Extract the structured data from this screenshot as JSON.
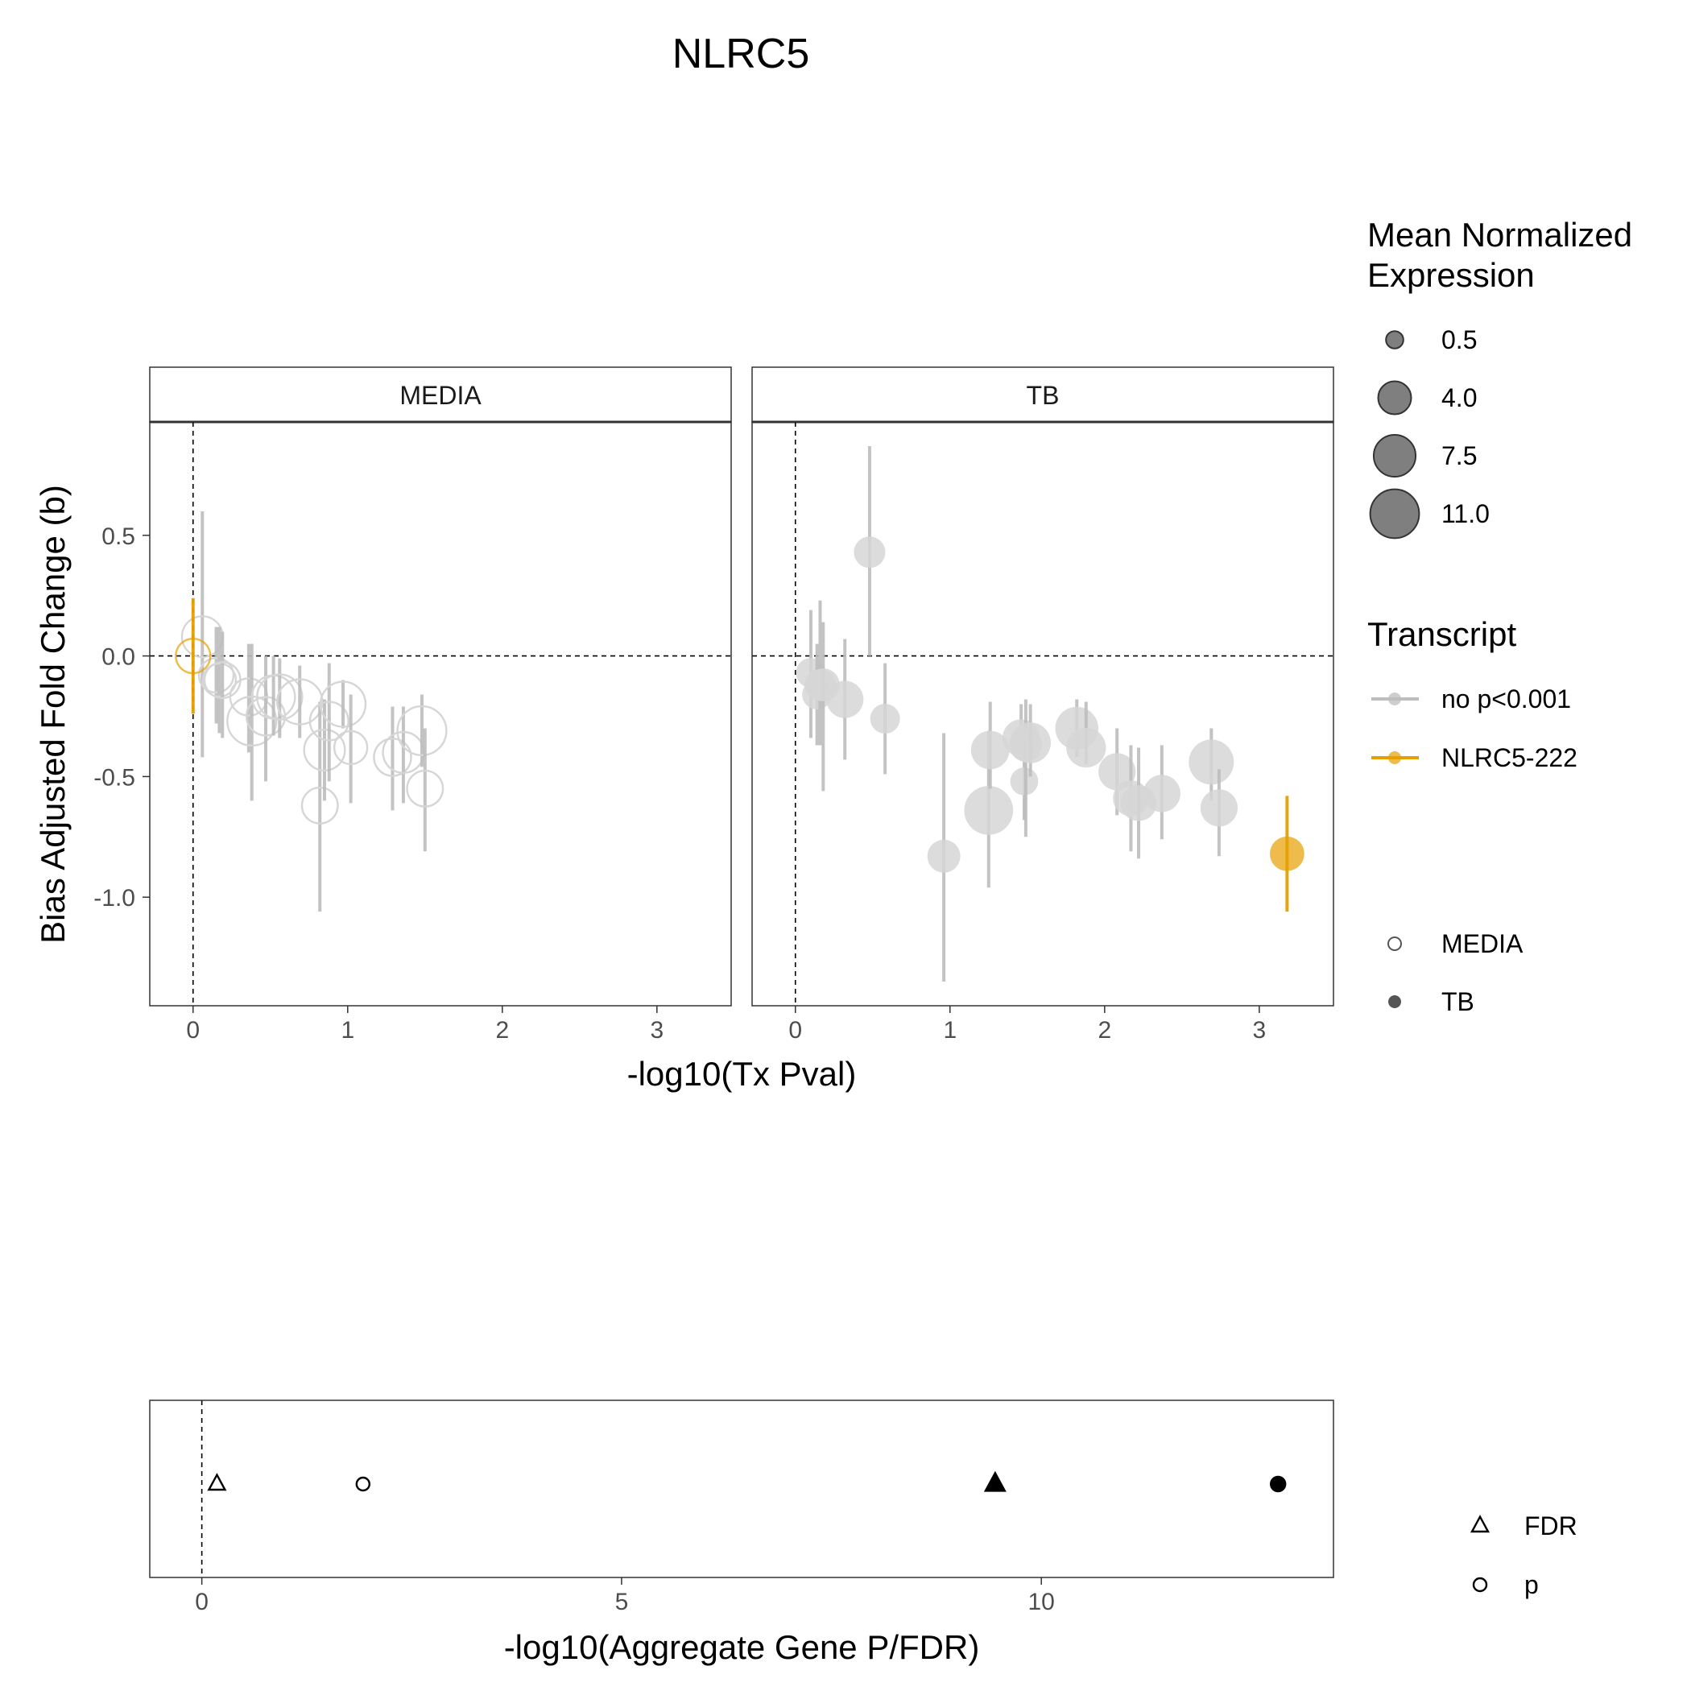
{
  "title": "NLRC5",
  "colors": {
    "grey": "#bdbdbd",
    "orange": "#e69f00",
    "grey_point": "#d6d6d6",
    "black": "#000000"
  },
  "legends": {
    "size": {
      "title_line1": "Mean Normalized",
      "title_line2": "Expression",
      "items": [
        {
          "label": "0.5",
          "value": 0.5
        },
        {
          "label": "4.0",
          "value": 4.0
        },
        {
          "label": "7.5",
          "value": 7.5
        },
        {
          "label": "11.0",
          "value": 11.0
        }
      ]
    },
    "transcript": {
      "title": "Transcript",
      "items": [
        {
          "label": "no p<0.001",
          "color": "#bdbdbd"
        },
        {
          "label": "NLRC5-222",
          "color": "#e69f00"
        }
      ]
    },
    "condition": {
      "items": [
        {
          "label": "MEDIA",
          "shape": "open-circle"
        },
        {
          "label": "TB",
          "shape": "filled-circle"
        }
      ]
    },
    "stat": {
      "items": [
        {
          "label": "FDR",
          "shape": "open-triangle"
        },
        {
          "label": "p",
          "shape": "open-circle"
        }
      ]
    }
  },
  "chart_data": [
    {
      "type": "scatter",
      "title": "NLRC5",
      "xlabel": "-log10(Tx Pval)",
      "ylabel": "Bias Adjusted Fold Change (b)",
      "xlim": [
        -0.28,
        3.48
      ],
      "ylim": [
        -1.45,
        0.97
      ],
      "xticks": [
        0,
        1,
        2,
        3
      ],
      "xtick_labels": [
        "0",
        "1",
        "2",
        "3"
      ],
      "yticks": [
        -1.0,
        -0.5,
        0.0,
        0.5
      ],
      "ytick_labels": [
        "-1.0",
        "-0.5",
        "0.0",
        "0.5"
      ],
      "ref_lines": {
        "x": 0,
        "y": 0
      },
      "grid": false,
      "panels": [
        {
          "label": "MEDIA",
          "points": [
            {
              "x": 0.06,
              "y": 0.08,
              "lo": -0.42,
              "hi": 0.6,
              "size": 7.0,
              "transcript": "no p<0.001"
            },
            {
              "x": 0.15,
              "y": -0.08,
              "lo": -0.28,
              "hi": 0.12,
              "size": 4.5,
              "transcript": "no p<0.001"
            },
            {
              "x": 0.17,
              "y": -0.1,
              "lo": -0.32,
              "hi": 0.12,
              "size": 4.0,
              "transcript": "no p<0.001"
            },
            {
              "x": 0.19,
              "y": -0.1,
              "lo": -0.34,
              "hi": 0.1,
              "size": 5.0,
              "transcript": "no p<0.001"
            },
            {
              "x": 0.36,
              "y": -0.17,
              "lo": -0.4,
              "hi": 0.05,
              "size": 5.5,
              "transcript": "no p<0.001"
            },
            {
              "x": 0.38,
              "y": -0.27,
              "lo": -0.6,
              "hi": 0.05,
              "size": 11.0,
              "transcript": "no p<0.001"
            },
            {
              "x": 0.47,
              "y": -0.25,
              "lo": -0.52,
              "hi": 0.0,
              "size": 6.0,
              "transcript": "no p<0.001"
            },
            {
              "x": 0.52,
              "y": -0.17,
              "lo": -0.33,
              "hi": 0.0,
              "size": 8.0,
              "transcript": "no p<0.001"
            },
            {
              "x": 0.56,
              "y": -0.17,
              "lo": -0.34,
              "hi": -0.01,
              "size": 9.0,
              "transcript": "no p<0.001"
            },
            {
              "x": 0.69,
              "y": -0.19,
              "lo": -0.34,
              "hi": -0.04,
              "size": 9.0,
              "transcript": "no p<0.001"
            },
            {
              "x": 0.82,
              "y": -0.62,
              "lo": -1.06,
              "hi": -0.19,
              "size": 5.0,
              "transcript": "no p<0.001"
            },
            {
              "x": 0.85,
              "y": -0.39,
              "lo": -0.6,
              "hi": -0.18,
              "size": 7.0,
              "transcript": "no p<0.001"
            },
            {
              "x": 0.88,
              "y": -0.27,
              "lo": -0.52,
              "hi": -0.03,
              "size": 6.0,
              "transcript": "no p<0.001"
            },
            {
              "x": 0.97,
              "y": -0.2,
              "lo": -0.3,
              "hi": -0.1,
              "size": 9.0,
              "transcript": "no p<0.001"
            },
            {
              "x": 1.02,
              "y": -0.38,
              "lo": -0.61,
              "hi": -0.16,
              "size": 4.0,
              "transcript": "no p<0.001"
            },
            {
              "x": 1.29,
              "y": -0.42,
              "lo": -0.64,
              "hi": -0.21,
              "size": 5.5,
              "transcript": "no p<0.001"
            },
            {
              "x": 1.36,
              "y": -0.4,
              "lo": -0.61,
              "hi": -0.21,
              "size": 7.0,
              "transcript": "no p<0.001"
            },
            {
              "x": 1.48,
              "y": -0.31,
              "lo": -0.46,
              "hi": -0.16,
              "size": 11.0,
              "transcript": "no p<0.001"
            },
            {
              "x": 1.5,
              "y": -0.55,
              "lo": -0.81,
              "hi": -0.3,
              "size": 5.0,
              "transcript": "no p<0.001"
            },
            {
              "x": 0.0,
              "y": 0.0,
              "lo": -0.24,
              "hi": 0.24,
              "size": 4.5,
              "transcript": "NLRC5-222"
            }
          ]
        },
        {
          "label": "TB",
          "points": [
            {
              "x": 0.1,
              "y": -0.07,
              "lo": -0.34,
              "hi": 0.19,
              "size": 3.0,
              "transcript": "no p<0.001"
            },
            {
              "x": 0.14,
              "y": -0.16,
              "lo": -0.37,
              "hi": 0.05,
              "size": 3.0,
              "transcript": "no p<0.001"
            },
            {
              "x": 0.16,
              "y": -0.12,
              "lo": -0.37,
              "hi": 0.23,
              "size": 3.5,
              "transcript": "no p<0.001"
            },
            {
              "x": 0.18,
              "y": -0.12,
              "lo": -0.56,
              "hi": 0.14,
              "size": 4.0,
              "transcript": "no p<0.001"
            },
            {
              "x": 0.32,
              "y": -0.18,
              "lo": -0.43,
              "hi": 0.07,
              "size": 5.5,
              "transcript": "no p<0.001"
            },
            {
              "x": 0.48,
              "y": 0.43,
              "lo": 0.0,
              "hi": 0.87,
              "size": 3.5,
              "transcript": "no p<0.001"
            },
            {
              "x": 0.58,
              "y": -0.26,
              "lo": -0.49,
              "hi": -0.03,
              "size": 3.0,
              "transcript": "no p<0.001"
            },
            {
              "x": 0.96,
              "y": -0.83,
              "lo": -1.35,
              "hi": -0.32,
              "size": 4.0,
              "transcript": "no p<0.001"
            },
            {
              "x": 1.25,
              "y": -0.64,
              "lo": -0.96,
              "hi": -0.31,
              "size": 11.0,
              "transcript": "no p<0.001"
            },
            {
              "x": 1.26,
              "y": -0.39,
              "lo": -0.55,
              "hi": -0.19,
              "size": 6.0,
              "transcript": "no p<0.001"
            },
            {
              "x": 1.46,
              "y": -0.34,
              "lo": -0.42,
              "hi": -0.2,
              "size": 5.5,
              "transcript": "no p<0.001"
            },
            {
              "x": 1.48,
              "y": -0.52,
              "lo": -0.68,
              "hi": -0.36,
              "size": 2.5,
              "transcript": "no p<0.001"
            },
            {
              "x": 1.49,
              "y": -0.37,
              "lo": -0.75,
              "hi": -0.18,
              "size": 4.0,
              "transcript": "no p<0.001"
            },
            {
              "x": 1.52,
              "y": -0.36,
              "lo": -0.5,
              "hi": -0.2,
              "size": 7.0,
              "transcript": "no p<0.001"
            },
            {
              "x": 1.82,
              "y": -0.3,
              "lo": -0.42,
              "hi": -0.18,
              "size": 8.0,
              "transcript": "no p<0.001"
            },
            {
              "x": 1.88,
              "y": -0.38,
              "lo": -0.45,
              "hi": -0.19,
              "size": 6.5,
              "transcript": "no p<0.001"
            },
            {
              "x": 2.08,
              "y": -0.48,
              "lo": -0.66,
              "hi": -0.3,
              "size": 5.5,
              "transcript": "no p<0.001"
            },
            {
              "x": 2.17,
              "y": -0.59,
              "lo": -0.81,
              "hi": -0.37,
              "size": 5.0,
              "transcript": "no p<0.001"
            },
            {
              "x": 2.22,
              "y": -0.61,
              "lo": -0.84,
              "hi": -0.38,
              "size": 5.0,
              "transcript": "no p<0.001"
            },
            {
              "x": 2.37,
              "y": -0.57,
              "lo": -0.76,
              "hi": -0.37,
              "size": 5.5,
              "transcript": "no p<0.001"
            },
            {
              "x": 2.69,
              "y": -0.44,
              "lo": -0.6,
              "hi": -0.3,
              "size": 9.0,
              "transcript": "no p<0.001"
            },
            {
              "x": 2.74,
              "y": -0.63,
              "lo": -0.83,
              "hi": -0.47,
              "size": 5.5,
              "transcript": "no p<0.001"
            },
            {
              "x": 3.18,
              "y": -0.82,
              "lo": -1.06,
              "hi": -0.58,
              "size": 4.5,
              "transcript": "NLRC5-222"
            }
          ]
        }
      ]
    },
    {
      "type": "scatter",
      "xlabel": "-log10(Aggregate Gene P/FDR)",
      "xlim": [
        -0.62,
        13.48
      ],
      "xticks": [
        0,
        5,
        10
      ],
      "xtick_labels": [
        "0",
        "5",
        "10"
      ],
      "ref_lines": {
        "x": 0
      },
      "grid": false,
      "points": [
        {
          "x": 0.18,
          "stat": "FDR",
          "condition": "MEDIA"
        },
        {
          "x": 1.92,
          "stat": "p",
          "condition": "MEDIA"
        },
        {
          "x": 9.45,
          "stat": "FDR",
          "condition": "TB"
        },
        {
          "x": 12.82,
          "stat": "p",
          "condition": "TB"
        }
      ]
    }
  ]
}
